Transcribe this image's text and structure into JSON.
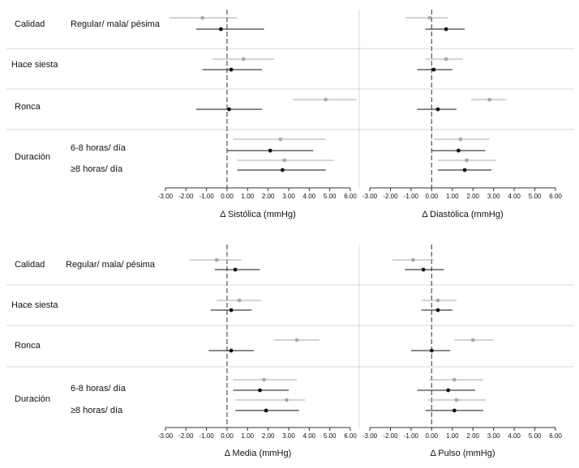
{
  "labels": {
    "calidad": "Calidad",
    "regular": "Regular/ mala/ pésima",
    "siesta": "Hace siesta",
    "ronca": "Ronca",
    "duracion": "Duración",
    "d68": "6-8 horas/ día",
    "d8": "≥8 horas/ día"
  },
  "colors": {
    "light": "#aaaaaa",
    "dark": "#111111",
    "ref": "#555555",
    "sep": "#d9d9d9"
  },
  "chart_data": [
    {
      "type": "scatter",
      "xlabel": "Δ Sistólica (mmHg)",
      "xlim": [
        -3,
        6
      ],
      "xticks": [
        "-3.00",
        "-2.00",
        "-1.00",
        "0.00",
        "1.00",
        "2.00",
        "3.00",
        "4.00",
        "5.00",
        "6.00"
      ],
      "series": [
        {
          "color": "light",
          "est": [
            -1.2,
            0.8,
            4.8,
            2.6,
            2.8
          ],
          "lo": [
            -2.8,
            -0.7,
            3.2,
            0.3,
            0.5
          ],
          "hi": [
            0.5,
            2.3,
            6.3,
            4.8,
            5.2
          ]
        },
        {
          "color": "dark",
          "est": [
            -0.3,
            0.2,
            0.1,
            2.1,
            2.7
          ],
          "lo": [
            -1.5,
            -1.2,
            -1.5,
            0.0,
            0.5
          ],
          "hi": [
            1.8,
            1.7,
            1.7,
            4.2,
            4.8
          ]
        }
      ]
    },
    {
      "type": "scatter",
      "xlabel": "Δ Diastólica (mmHg)",
      "xlim": [
        -3,
        6
      ],
      "xticks": [
        "-3.00",
        "-2.00",
        "-1.00",
        "0.00",
        "1.00",
        "2.00",
        "3.00",
        "4.00",
        "5.00",
        "6.00"
      ],
      "series": [
        {
          "color": "light",
          "est": [
            -0.1,
            0.7,
            2.8,
            1.4,
            1.7
          ],
          "lo": [
            -1.3,
            -0.3,
            1.9,
            0.1,
            0.3
          ],
          "hi": [
            0.8,
            1.5,
            3.6,
            2.8,
            3.1
          ]
        },
        {
          "color": "dark",
          "est": [
            0.7,
            0.1,
            0.3,
            1.3,
            1.6
          ],
          "lo": [
            -0.3,
            -0.7,
            -0.7,
            0.0,
            0.3
          ],
          "hi": [
            1.6,
            1.0,
            1.2,
            2.6,
            2.9
          ]
        }
      ]
    },
    {
      "type": "scatter",
      "xlabel": "Δ Media (mmHg)",
      "xlim": [
        -3,
        6
      ],
      "xticks": [
        "-3.00",
        "-2.00",
        "-1.00",
        "0.00",
        "1.00",
        "2.00",
        "3.00",
        "4.00",
        "5.00",
        "6.00"
      ],
      "series": [
        {
          "color": "light",
          "est": [
            -0.5,
            0.6,
            3.4,
            1.8,
            2.9
          ],
          "lo": [
            -1.8,
            -0.5,
            2.3,
            0.3,
            0.4
          ],
          "hi": [
            0.7,
            1.7,
            4.5,
            3.4,
            3.8
          ]
        },
        {
          "color": "dark",
          "est": [
            0.4,
            0.2,
            0.2,
            1.6,
            1.9
          ],
          "lo": [
            -0.6,
            -0.8,
            -0.9,
            0.3,
            0.4
          ],
          "hi": [
            1.6,
            1.2,
            1.3,
            3.0,
            3.5
          ]
        }
      ]
    },
    {
      "type": "scatter",
      "xlabel": "Δ Pulso (mmHg)",
      "xlim": [
        -3,
        6
      ],
      "xticks": [
        "-3.00",
        "-2.00",
        "-1.00",
        "0.00",
        "1.00",
        "2.00",
        "3.00",
        "4.00",
        "5.00",
        "6.00"
      ],
      "series": [
        {
          "color": "light",
          "est": [
            -0.9,
            0.3,
            2.0,
            1.1,
            1.2
          ],
          "lo": [
            -1.9,
            -0.5,
            1.1,
            -0.1,
            -0.2
          ],
          "hi": [
            0.1,
            1.2,
            3.0,
            2.5,
            2.6
          ]
        },
        {
          "color": "dark",
          "est": [
            -0.4,
            0.3,
            0.0,
            0.8,
            1.1
          ],
          "lo": [
            -1.3,
            -0.5,
            -1.0,
            -0.7,
            -0.3
          ],
          "hi": [
            0.6,
            1.0,
            0.9,
            2.1,
            2.5
          ]
        }
      ]
    }
  ]
}
